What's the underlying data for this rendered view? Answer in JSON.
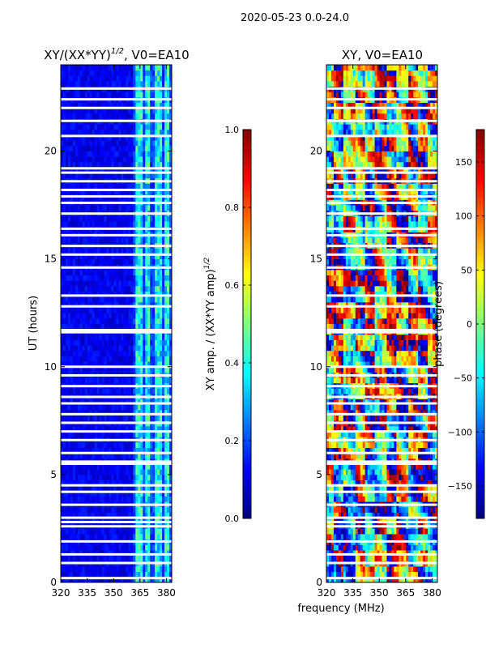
{
  "figure": {
    "suptitle": "2020-05-23 0.0-24.0"
  },
  "colors": {
    "background": "#ffffff",
    "axis": "#000000",
    "gap": "#ffffff",
    "jet": [
      "#00007f",
      "#0000ff",
      "#007fff",
      "#00ffff",
      "#7fff7f",
      "#ffff00",
      "#ff7f00",
      "#ff0000",
      "#7f0000"
    ]
  },
  "chart_data": [
    {
      "type": "heatmap",
      "title": "XY/(XX*YY)^{1/2}, V0=EA10",
      "title_main": "XY/(XX*YY)",
      "title_exponent": "1/2",
      "title_suffix": ", V0=EA10",
      "xlabel": "",
      "ylabel": "UT (hours)",
      "xlim": [
        320,
        383
      ],
      "ylim": [
        0,
        24
      ],
      "xticks": [
        320,
        335,
        350,
        365,
        380
      ],
      "yticks": [
        0,
        5,
        10,
        15,
        20
      ],
      "colormap": "jet",
      "description_values": "amplitude ratio mostly 0.0-0.3; brighter columns near 362-380 MHz",
      "bright_bands_mhz": [
        [
          362,
          366
        ],
        [
          368,
          371
        ],
        [
          374,
          377
        ],
        [
          379,
          381
        ]
      ],
      "gap_rows_hours": [
        0.2,
        0.9,
        1.3,
        1.9,
        2.6,
        2.8,
        3.0,
        3.6,
        4.2,
        4.5,
        5.5,
        5.6,
        6.0,
        6.6,
        7.0,
        7.4,
        7.8,
        8.3,
        8.6,
        9.1,
        9.6,
        10.0,
        11.6,
        11.7,
        12.8,
        13.3,
        14.6,
        15.2,
        15.6,
        16.1,
        16.4,
        17.1,
        17.6,
        17.9,
        18.2,
        18.6,
        19.0,
        19.2,
        20.7,
        21.4,
        22.0,
        22.4,
        22.9
      ]
    },
    {
      "type": "colorbar",
      "label": "XY amp. / (XX*YY amp)^{1/2}",
      "label_main": "XY amp. / (XX*YY amp)",
      "label_exponent": "1/2",
      "range": [
        0.0,
        1.0
      ],
      "ticks": [
        0.0,
        0.2,
        0.4,
        0.6,
        0.8,
        1.0
      ],
      "tick_labels": [
        "0.0",
        "0.2",
        "0.4",
        "0.6",
        "0.8",
        "1.0"
      ],
      "colormap": "jet"
    },
    {
      "type": "heatmap",
      "title": "XY, V0=EA10",
      "xlabel": "frequency (MHz)",
      "ylabel": "",
      "xlim": [
        320,
        383
      ],
      "ylim": [
        0,
        24
      ],
      "xticks": [
        320,
        335,
        350,
        365,
        380
      ],
      "yticks": [
        0,
        5,
        10,
        15,
        20
      ],
      "colormap": "jet",
      "value_range_degrees": [
        -180,
        180
      ],
      "gap_rows_hours": [
        0.2,
        0.9,
        1.3,
        1.9,
        2.6,
        2.8,
        3.0,
        3.6,
        4.2,
        4.5,
        5.5,
        5.6,
        6.0,
        6.6,
        7.0,
        7.4,
        7.8,
        8.3,
        8.6,
        9.1,
        9.6,
        10.0,
        11.6,
        11.7,
        12.8,
        13.3,
        14.6,
        15.2,
        15.6,
        16.1,
        16.4,
        17.1,
        17.6,
        17.9,
        18.2,
        18.6,
        19.0,
        19.2,
        20.7,
        21.4,
        22.0,
        22.4,
        22.9
      ]
    },
    {
      "type": "colorbar",
      "label": "phase (degrees)",
      "range": [
        -180,
        180
      ],
      "ticks": [
        150,
        100,
        50,
        0,
        -50,
        -100,
        -150
      ],
      "tick_labels": [
        "150",
        "100",
        "50",
        "0",
        "−50",
        "−100",
        "−150"
      ],
      "colormap": "jet"
    }
  ]
}
